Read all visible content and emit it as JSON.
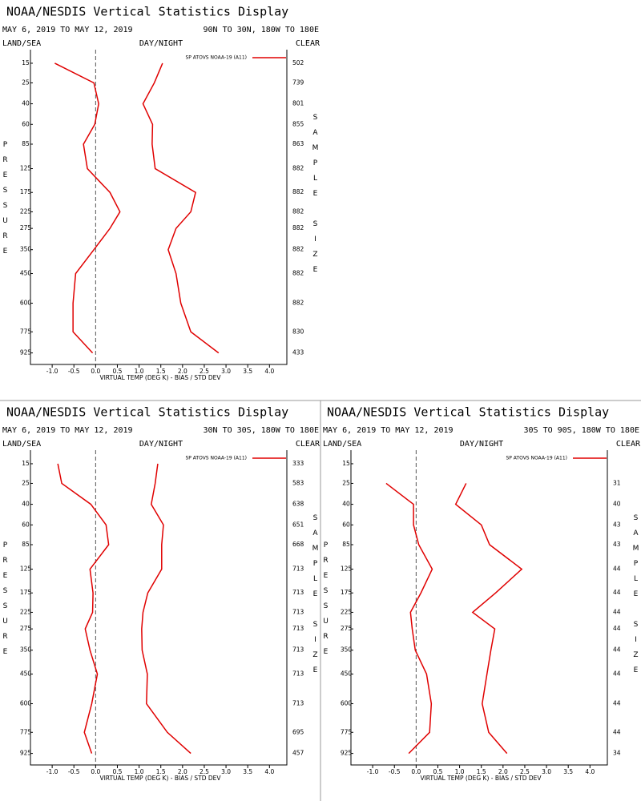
{
  "chart_data": [
    {
      "type": "line",
      "title": "NOAA/NESDIS Vertical Statistics Display",
      "subtitle": "MAY 6, 2019 TO MAY 12, 2019",
      "region": "90N TO 30N, 180W TO 180E",
      "corner_labels": [
        "LAND/SEA",
        "DAY/NIGHT",
        "CLEAR"
      ],
      "ylabel": "PRESSURE",
      "y2label": "SAMPLE SIZE",
      "xlabel": "VIRTUAL TEMP (DEG K) - BIAS / STD DEV",
      "y": [
        15,
        25,
        40,
        60,
        85,
        125,
        175,
        225,
        275,
        350,
        450,
        600,
        775,
        925
      ],
      "ylim": [
        10,
        1015
      ],
      "yticks": [
        15,
        25,
        40,
        60,
        85,
        125,
        175,
        225,
        275,
        350,
        450,
        600,
        775,
        925
      ],
      "xlim": [
        -1.5,
        4.4
      ],
      "xticks": [
        {
          "value": -1,
          "label": "-1.0"
        },
        -0.5,
        {
          "value": 0,
          "label": "0.0"
        },
        0.5,
        {
          "value": 1,
          "label": "1.0"
        },
        1.5,
        {
          "value": 2,
          "label": "2.0"
        },
        2.5,
        {
          "value": 3,
          "label": "3.0"
        },
        3.5,
        {
          "value": 4,
          "label": "4.0"
        }
      ],
      "sample_size": [
        502,
        739,
        801,
        855,
        863,
        882,
        882,
        882,
        882,
        882,
        882,
        882,
        830,
        433
      ],
      "series": [
        {
          "name": "SP ATOVS NOAA-19 (A11)",
          "color": "#e00000",
          "bias": [
            -0.94,
            -0.04,
            0.07,
            -0.02,
            -0.28,
            -0.19,
            0.33,
            0.56,
            0.33,
            -0.04,
            -0.46,
            -0.52,
            -0.52,
            -0.07
          ],
          "std_dev": [
            1.54,
            1.35,
            1.09,
            1.31,
            1.3,
            1.37,
            2.3,
            2.19,
            1.85,
            1.67,
            1.85,
            1.96,
            2.19,
            2.83
          ]
        }
      ]
    },
    {
      "type": "line",
      "title": "NOAA/NESDIS Vertical Statistics Display",
      "subtitle": "MAY 6, 2019 TO MAY 12, 2019",
      "region": "30N TO 30S, 180W TO 180E",
      "corner_labels": [
        "LAND/SEA",
        "DAY/NIGHT",
        "CLEAR"
      ],
      "ylabel": "PRESSURE",
      "y2label": "SAMPLE SIZE",
      "xlabel": "VIRTUAL TEMP (DEG K) - BIAS / STD DEV",
      "y": [
        15,
        25,
        40,
        60,
        85,
        125,
        175,
        225,
        275,
        350,
        450,
        600,
        775,
        925
      ],
      "ylim": [
        10,
        1015
      ],
      "yticks": [
        15,
        25,
        40,
        60,
        85,
        125,
        175,
        225,
        275,
        350,
        450,
        600,
        775,
        925
      ],
      "xlim": [
        -1.5,
        4.4
      ],
      "xticks": [
        {
          "value": -1,
          "label": "-1.0"
        },
        -0.5,
        {
          "value": 0,
          "label": "0.0"
        },
        0.5,
        {
          "value": 1,
          "label": "1.0"
        },
        1.5,
        {
          "value": 2,
          "label": "2.0"
        },
        2.5,
        {
          "value": 3,
          "label": "3.0"
        },
        3.5,
        {
          "value": 4,
          "label": "4.0"
        }
      ],
      "sample_size": [
        333,
        583,
        638,
        651,
        668,
        713,
        713,
        713,
        713,
        713,
        713,
        713,
        695,
        457
      ],
      "series": [
        {
          "name": "SP ATOVS NOAA-19 (A11)",
          "color": "#e00000",
          "bias": [
            -0.87,
            -0.78,
            -0.11,
            0.24,
            0.3,
            -0.13,
            -0.06,
            -0.07,
            -0.24,
            -0.13,
            0.04,
            -0.09,
            -0.26,
            -0.09
          ],
          "std_dev": [
            1.43,
            1.37,
            1.28,
            1.56,
            1.52,
            1.52,
            1.2,
            1.09,
            1.06,
            1.07,
            1.19,
            1.17,
            1.65,
            2.19
          ]
        }
      ]
    },
    {
      "type": "line",
      "title": "NOAA/NESDIS Vertical Statistics Display",
      "subtitle": "MAY 6, 2019 TO MAY 12, 2019",
      "region": "30S TO 90S, 180W TO 180E",
      "corner_labels": [
        "LAND/SEA",
        "DAY/NIGHT",
        "CLEAR"
      ],
      "ylabel": "PRESSURE",
      "y2label": "SAMPLE SIZE",
      "xlabel": "VIRTUAL TEMP (DEG K) - BIAS / STD DEV",
      "y": [
        15,
        25,
        40,
        60,
        85,
        125,
        175,
        225,
        275,
        350,
        450,
        600,
        775,
        925
      ],
      "ylim": [
        10,
        1015
      ],
      "yticks": [
        15,
        25,
        40,
        60,
        85,
        125,
        175,
        225,
        275,
        350,
        450,
        600,
        775,
        925
      ],
      "xlim": [
        -1.5,
        4.4
      ],
      "xticks": [
        {
          "value": -1,
          "label": "-1.0"
        },
        -0.5,
        {
          "value": 0,
          "label": "0.0"
        },
        0.5,
        {
          "value": 1,
          "label": "1.0"
        },
        1.5,
        {
          "value": 2,
          "label": "2.0"
        },
        2.5,
        {
          "value": 3,
          "label": "3.0"
        },
        3.5,
        {
          "value": 4,
          "label": "4.0"
        }
      ],
      "sample_size": [
        null,
        31,
        40,
        43,
        43,
        44,
        44,
        44,
        44,
        44,
        44,
        44,
        44,
        34
      ],
      "series": [
        {
          "name": "SP ATOVS NOAA-19 (A11)",
          "color": "#e00000",
          "bias": [
            null,
            -0.69,
            -0.06,
            -0.06,
            0.06,
            0.37,
            0.11,
            -0.13,
            -0.09,
            -0.02,
            0.24,
            0.35,
            0.31,
            -0.17
          ],
          "std_dev": [
            null,
            1.15,
            0.91,
            1.5,
            1.69,
            2.43,
            1.83,
            1.3,
            1.81,
            1.72,
            1.63,
            1.52,
            1.67,
            2.09
          ]
        }
      ]
    }
  ]
}
